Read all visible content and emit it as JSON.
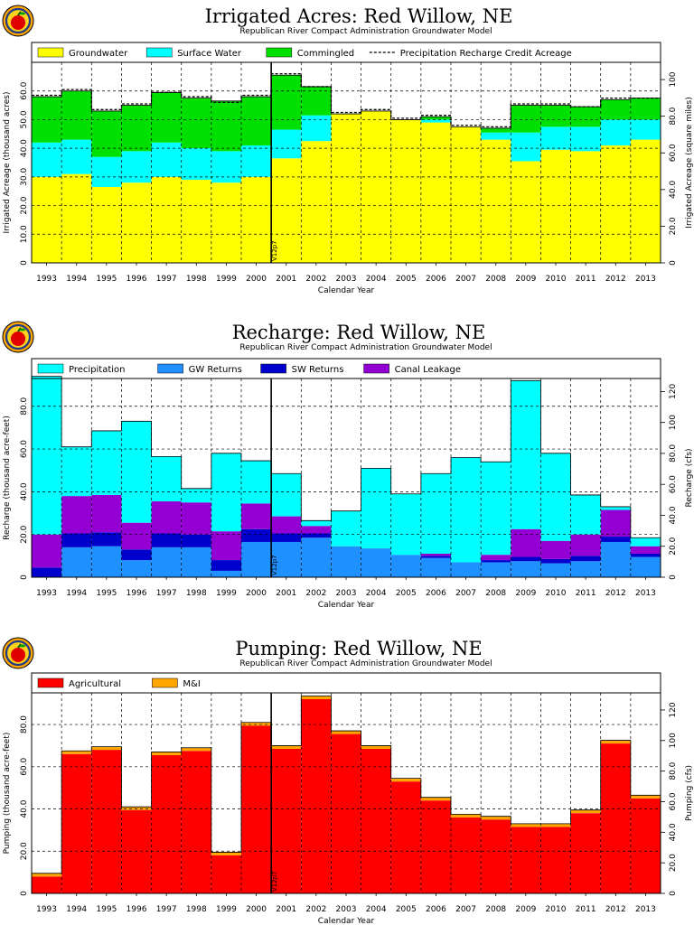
{
  "chart_data": [
    {
      "type": "area",
      "title": "Irrigated Acres: Red Willow, NE",
      "subtitle": "Republican River Compact Administration Groundwater Model",
      "xlabel": "Calendar Year",
      "ylabel": "Irrigated Acreage (thousand acres)",
      "y2label": "Irrigated Acreage (square miles)",
      "stacked": true,
      "categories": [
        "1993",
        "1994",
        "1995",
        "1996",
        "1997",
        "1998",
        "1999",
        "2000",
        "2001",
        "2002",
        "2003",
        "2004",
        "2005",
        "2006",
        "2007",
        "2008",
        "2009",
        "2010",
        "2011",
        "2012",
        "2013"
      ],
      "ylim": [
        0,
        70
      ],
      "yticks": [
        0,
        10,
        20,
        30,
        40,
        50,
        60
      ],
      "ytick_labels": [
        "0",
        "10.0",
        "20.0",
        "30.0",
        "40.0",
        "50.0",
        "60.0"
      ],
      "y2lim": [
        0,
        109.4
      ],
      "y2ticks": [
        0,
        20,
        40,
        60,
        80,
        100
      ],
      "y2tick_labels": [
        "0",
        "20.0",
        "40.0",
        "60.0",
        "80.0",
        "100"
      ],
      "series": [
        {
          "name": "Groundwater",
          "color": "#ffff00",
          "values": [
            30.0,
            31.0,
            26.5,
            28.0,
            30.0,
            29.0,
            28.0,
            30.0,
            36.5,
            42.5,
            52.0,
            53.0,
            50.0,
            49.0,
            47.5,
            43.0,
            35.5,
            39.5,
            39.0,
            41.0,
            43.0
          ]
        },
        {
          "name": "Surface Water",
          "color": "#00ffff",
          "values": [
            12.0,
            12.0,
            10.5,
            11.0,
            12.0,
            11.0,
            11.0,
            11.0,
            10.0,
            9.0,
            0.0,
            0.0,
            0.0,
            1.0,
            0.0,
            2.5,
            10.0,
            8.0,
            8.5,
            9.0,
            7.0
          ]
        },
        {
          "name": "Commingled",
          "color": "#00e000",
          "values": [
            16.0,
            17.0,
            16.0,
            16.0,
            17.5,
            17.5,
            17.5,
            17.0,
            19.0,
            10.0,
            0.0,
            0.0,
            0.0,
            1.0,
            0.0,
            1.5,
            9.5,
            7.5,
            7.0,
            7.0,
            7.5
          ]
        }
      ],
      "overlay_line": {
        "name": "Precipitation Recharge Credit Acreage",
        "style": "dashed",
        "values": [
          58.5,
          60.5,
          53.5,
          55.5,
          59.5,
          58.0,
          56.0,
          58.5,
          66.0,
          61.5,
          52.5,
          53.5,
          50.5,
          51.5,
          48.0,
          47.5,
          55.5,
          55.5,
          54.5,
          57.5,
          57.5
        ]
      },
      "marker": {
        "label": "V12p7",
        "after_category": "2000"
      },
      "legend_position": "top"
    },
    {
      "type": "area",
      "title": "Recharge: Red Willow, NE",
      "subtitle": "Republican River Compact Administration Groundwater Model",
      "xlabel": "Calendar Year",
      "ylabel": "Recharge (thousand acre-feet)",
      "y2label": "Recharge (cfs)",
      "stacked": true,
      "categories": [
        "1993",
        "1994",
        "1995",
        "1996",
        "1997",
        "1998",
        "1999",
        "2000",
        "2001",
        "2002",
        "2003",
        "2004",
        "2005",
        "2006",
        "2007",
        "2008",
        "2009",
        "2010",
        "2011",
        "2012",
        "2013"
      ],
      "ylim": [
        0,
        93
      ],
      "yticks": [
        0,
        20,
        40,
        60,
        80
      ],
      "ytick_labels": [
        "0",
        "20.0",
        "40.0",
        "60.0",
        "80.0"
      ],
      "y2lim": [
        0,
        128.4
      ],
      "y2ticks": [
        0,
        20,
        40,
        60,
        80,
        100,
        120
      ],
      "y2tick_labels": [
        "0",
        "20.0",
        "40.0",
        "60.0",
        "80.0",
        "100",
        "120"
      ],
      "series": [
        {
          "name": "GW Returns",
          "color": "#1e90ff",
          "values": [
            0.0,
            14.0,
            14.5,
            8.0,
            14.0,
            14.0,
            3.0,
            16.5,
            16.5,
            18.5,
            14.5,
            13.5,
            10.5,
            9.0,
            7.0,
            7.0,
            7.5,
            6.5,
            7.5,
            16.5,
            9.5
          ]
        },
        {
          "name": "SW Returns",
          "color": "#0000cd",
          "values": [
            4.5,
            6.5,
            6.5,
            5.0,
            6.5,
            6.0,
            5.0,
            6.0,
            4.0,
            2.0,
            0.0,
            0.0,
            0.0,
            1.0,
            0.0,
            1.0,
            2.0,
            2.0,
            2.5,
            2.5,
            1.5
          ]
        },
        {
          "name": "Canal Leakage",
          "color": "#9400d3",
          "values": [
            15.5,
            17.5,
            17.5,
            12.5,
            15.0,
            15.0,
            13.5,
            12.0,
            8.0,
            3.5,
            0.0,
            0.0,
            0.0,
            1.0,
            0.0,
            2.5,
            13.0,
            8.5,
            10.0,
            12.5,
            3.5
          ]
        },
        {
          "name": "Precipitation",
          "color": "#00ffff",
          "values": [
            74.0,
            23.0,
            30.0,
            47.5,
            21.0,
            6.5,
            36.5,
            20.0,
            20.0,
            2.5,
            16.5,
            37.5,
            28.5,
            37.5,
            49.0,
            43.5,
            69.5,
            41.0,
            18.5,
            1.5,
            4.0
          ]
        }
      ],
      "marker": {
        "label": "V12p7",
        "after_category": "2000"
      },
      "legend_position": "top"
    },
    {
      "type": "area",
      "title": "Pumping: Red Willow, NE",
      "subtitle": "Republican River Compact Administration Groundwater Model",
      "xlabel": "Calendar Year",
      "ylabel": "Pumping (thousand acre-feet)",
      "y2label": "Pumping (cfs)",
      "stacked": true,
      "categories": [
        "1993",
        "1994",
        "1995",
        "1996",
        "1997",
        "1998",
        "1999",
        "2000",
        "2001",
        "2002",
        "2003",
        "2004",
        "2005",
        "2006",
        "2007",
        "2008",
        "2009",
        "2010",
        "2011",
        "2012",
        "2013"
      ],
      "ylim": [
        0,
        95
      ],
      "yticks": [
        0,
        20,
        40,
        60,
        80
      ],
      "ytick_labels": [
        "0",
        "20.0",
        "40.0",
        "60.0",
        "80.0"
      ],
      "y2lim": [
        0,
        131.2
      ],
      "y2ticks": [
        0,
        20,
        40,
        60,
        80,
        100,
        120
      ],
      "y2tick_labels": [
        "0",
        "20.0",
        "40.0",
        "60.0",
        "80.0",
        "100",
        "120"
      ],
      "series": [
        {
          "name": "Agricultural",
          "color": "#ff0000",
          "values": [
            8.0,
            66.0,
            68.0,
            39.5,
            65.5,
            67.5,
            18.0,
            79.5,
            68.5,
            92.0,
            75.5,
            68.5,
            53.0,
            44.0,
            36.0,
            35.0,
            31.5,
            31.5,
            38.0,
            71.0,
            45.0
          ]
        },
        {
          "name": "M&I",
          "color": "#ffa500",
          "values": [
            1.5,
            1.5,
            1.5,
            1.5,
            1.5,
            1.5,
            1.5,
            1.5,
            1.5,
            1.5,
            1.5,
            1.5,
            1.5,
            1.5,
            1.5,
            1.5,
            1.5,
            1.5,
            1.5,
            1.5,
            1.5
          ]
        }
      ],
      "marker": {
        "label": "V12p7",
        "after_category": "2000"
      },
      "legend_position": "top"
    }
  ]
}
